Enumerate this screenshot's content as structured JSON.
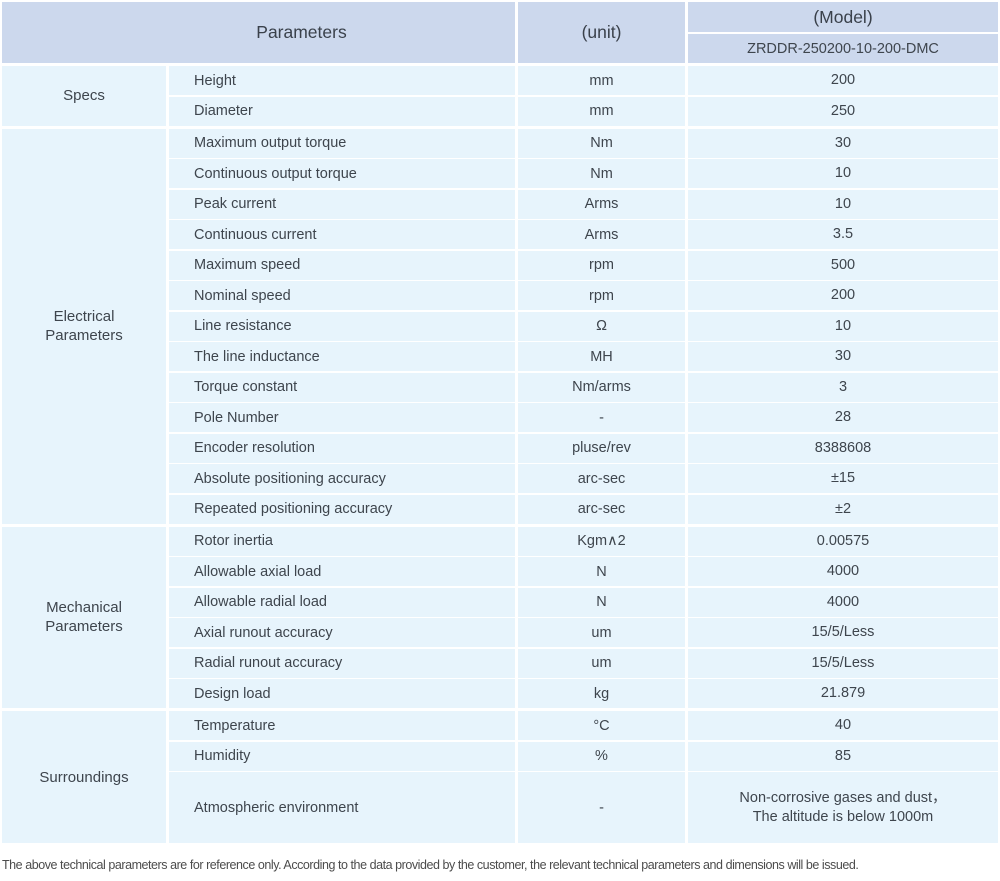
{
  "header": {
    "parameters_label": "Parameters",
    "unit_label": "(unit)",
    "model_label": "(Model)",
    "model_value": "ZRDDR-250200-10-200-DMC"
  },
  "sections": [
    {
      "category": "Specs",
      "rows": [
        {
          "name": "Height",
          "unit": "mm",
          "value": "200"
        },
        {
          "name": "Diameter",
          "unit": "mm",
          "value": "250"
        }
      ]
    },
    {
      "category": "Electrical\nParameters",
      "rows": [
        {
          "name": "Maximum output torque",
          "unit": "Nm",
          "value": "30"
        },
        {
          "name": "Continuous output torque",
          "unit": "Nm",
          "value": "10"
        },
        {
          "name": "Peak current",
          "unit": "Arms",
          "value": "10"
        },
        {
          "name": "Continuous current",
          "unit": "Arms",
          "value": "3.5"
        },
        {
          "name": "Maximum speed",
          "unit": "rpm",
          "value": "500"
        },
        {
          "name": "Nominal speed",
          "unit": "rpm",
          "value": "200"
        },
        {
          "name": "Line resistance",
          "unit": "Ω",
          "value": "10"
        },
        {
          "name": "The line inductance",
          "unit": "MH",
          "value": "30"
        },
        {
          "name": "Torque constant",
          "unit": "Nm/arms",
          "value": "3"
        },
        {
          "name": "Pole Number",
          "unit": "-",
          "value": "28"
        },
        {
          "name": "Encoder resolution",
          "unit": "pluse/rev",
          "value": "8388608"
        },
        {
          "name": "Absolute positioning accuracy",
          "unit": "arc-sec",
          "value": "±15"
        },
        {
          "name": "Repeated positioning accuracy",
          "unit": "arc-sec",
          "value": "±2"
        }
      ]
    },
    {
      "category": "Mechanical\nParameters",
      "rows": [
        {
          "name": "Rotor inertia",
          "unit": "Kgm∧2",
          "value": "0.00575"
        },
        {
          "name": "Allowable axial load",
          "unit": "N",
          "value": "4000"
        },
        {
          "name": "Allowable radial load",
          "unit": "N",
          "value": "4000"
        },
        {
          "name": "Axial runout accuracy",
          "unit": "um",
          "value": "15/5/Less"
        },
        {
          "name": "Radial runout accuracy",
          "unit": "um",
          "value": "15/5/Less"
        },
        {
          "name": "Design load",
          "unit": "kg",
          "value": "21.879"
        }
      ]
    },
    {
      "category": "Surroundings",
      "rows": [
        {
          "name": "Temperature",
          "unit": "°C",
          "value": "40"
        },
        {
          "name": "Humidity",
          "unit": "%",
          "value": "85"
        },
        {
          "name": "Atmospheric environment",
          "unit": "-",
          "value": "Non-corrosive gases and dust，\nThe altitude is below 1000m"
        }
      ]
    }
  ],
  "footer": {
    "note": "The above technical parameters are for reference only. According to the data provided by the customer, the relevant technical parameters and dimensions will be issued."
  },
  "colors": {
    "header_bg": "#ccd8ed",
    "body_bg": "#e7f4fc",
    "text": "#3e454d",
    "footer_text": "#4c4c4c"
  }
}
